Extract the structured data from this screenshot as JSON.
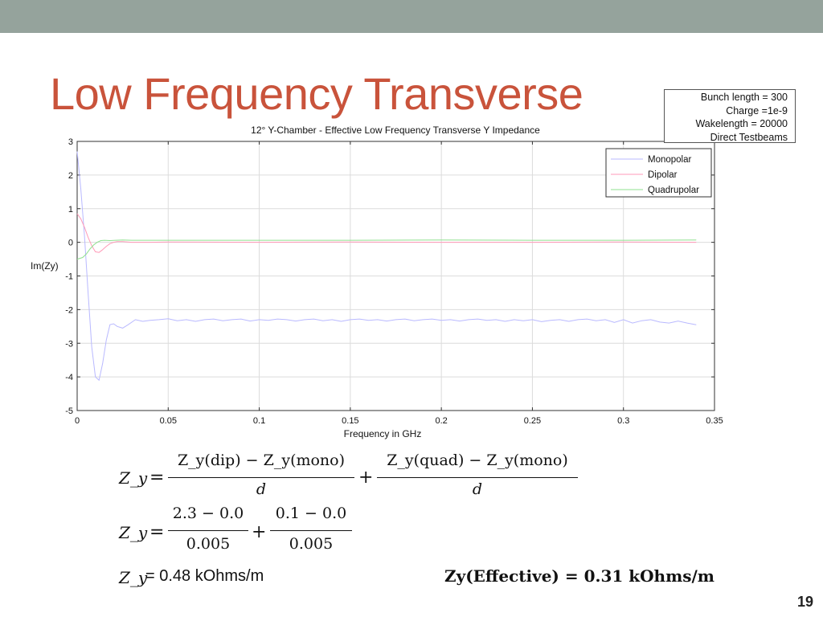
{
  "slide": {
    "title": "Low Frequency Transverse",
    "page_number": "19",
    "topbar_color": "#95a39c",
    "title_color": "#c9533b"
  },
  "info_box": {
    "lines": [
      "Bunch length = 300",
      "Charge =1e-9",
      "Wakelength = 20000",
      "Direct Testbeams"
    ]
  },
  "chart_data": {
    "type": "line",
    "title": "12° Y-Chamber - Effective Low Frequency Transverse Y Impedance",
    "xlabel": "Frequency in GHz",
    "ylabel": "Im(Zy)",
    "xlim": [
      0,
      0.35
    ],
    "ylim": [
      -5,
      3
    ],
    "xticks": [
      "0",
      "0.05",
      "0.1",
      "0.15",
      "0.2",
      "0.25",
      "0.3",
      "0.35"
    ],
    "yticks": [
      "3",
      "2",
      "1",
      "0",
      "-1",
      "-2",
      "-3",
      "-4",
      "-5"
    ],
    "grid": true,
    "legend_position": "top-right",
    "series": [
      {
        "name": "Monopolar",
        "color": "#b9b9ff",
        "x": [
          0,
          0.002,
          0.004,
          0.006,
          0.008,
          0.01,
          0.012,
          0.014,
          0.016,
          0.018,
          0.02,
          0.022,
          0.025,
          0.028,
          0.032,
          0.036,
          0.04,
          0.045,
          0.05,
          0.055,
          0.06,
          0.065,
          0.07,
          0.075,
          0.08,
          0.085,
          0.09,
          0.095,
          0.1,
          0.105,
          0.11,
          0.115,
          0.12,
          0.125,
          0.13,
          0.135,
          0.14,
          0.145,
          0.15,
          0.155,
          0.16,
          0.165,
          0.17,
          0.175,
          0.18,
          0.185,
          0.19,
          0.195,
          0.2,
          0.205,
          0.21,
          0.215,
          0.22,
          0.225,
          0.23,
          0.235,
          0.24,
          0.245,
          0.25,
          0.255,
          0.26,
          0.265,
          0.27,
          0.275,
          0.28,
          0.285,
          0.29,
          0.295,
          0.3,
          0.305,
          0.31,
          0.315,
          0.32,
          0.325,
          0.33,
          0.335,
          0.34
        ],
        "values": [
          2.7,
          1.6,
          0.2,
          -1.5,
          -3.1,
          -4.0,
          -4.1,
          -3.6,
          -2.9,
          -2.45,
          -2.42,
          -2.5,
          -2.55,
          -2.45,
          -2.3,
          -2.35,
          -2.32,
          -2.3,
          -2.27,
          -2.33,
          -2.3,
          -2.35,
          -2.3,
          -2.28,
          -2.33,
          -2.3,
          -2.28,
          -2.34,
          -2.3,
          -2.32,
          -2.28,
          -2.3,
          -2.34,
          -2.3,
          -2.28,
          -2.33,
          -2.3,
          -2.35,
          -2.3,
          -2.28,
          -2.32,
          -2.3,
          -2.34,
          -2.3,
          -2.28,
          -2.33,
          -2.3,
          -2.28,
          -2.32,
          -2.3,
          -2.34,
          -2.3,
          -2.28,
          -2.32,
          -2.3,
          -2.35,
          -2.3,
          -2.33,
          -2.3,
          -2.36,
          -2.32,
          -2.3,
          -2.35,
          -2.3,
          -2.28,
          -2.33,
          -2.3,
          -2.38,
          -2.3,
          -2.4,
          -2.33,
          -2.3,
          -2.37,
          -2.4,
          -2.34,
          -2.4,
          -2.45
        ]
      },
      {
        "name": "Dipolar",
        "color": "#ff9ab8",
        "x": [
          0,
          0.002,
          0.004,
          0.006,
          0.008,
          0.01,
          0.012,
          0.014,
          0.016,
          0.018,
          0.02,
          0.022,
          0.025,
          0.03,
          0.04,
          0.05,
          0.1,
          0.15,
          0.2,
          0.25,
          0.3,
          0.34
        ],
        "values": [
          0.85,
          0.7,
          0.45,
          0.15,
          -0.1,
          -0.28,
          -0.3,
          -0.22,
          -0.12,
          -0.04,
          0.0,
          0.02,
          0.02,
          0.0,
          0.0,
          0.01,
          0.0,
          0.01,
          0.0,
          0.0,
          0.01,
          0.0
        ]
      },
      {
        "name": "Quadrupolar",
        "color": "#8fe08f",
        "x": [
          0,
          0.003,
          0.005,
          0.007,
          0.009,
          0.011,
          0.013,
          0.015,
          0.018,
          0.021,
          0.025,
          0.03,
          0.04,
          0.05,
          0.1,
          0.15,
          0.2,
          0.25,
          0.3,
          0.34
        ],
        "values": [
          -0.5,
          -0.45,
          -0.35,
          -0.2,
          -0.08,
          0.0,
          0.05,
          0.06,
          0.05,
          0.06,
          0.07,
          0.06,
          0.06,
          0.06,
          0.06,
          0.06,
          0.07,
          0.06,
          0.06,
          0.07
        ]
      }
    ]
  },
  "equations": {
    "eq1": {
      "lhs": "Z_y",
      "num1": "Z_y(dip) − Z_y(mono)",
      "den1": "d",
      "num2": "Z_y(quad) − Z_y(mono)",
      "den2": "d"
    },
    "eq2": {
      "lhs": "Z_y",
      "num1": "2.3 − 0.0",
      "den1": "0.005",
      "num2": "0.1 − 0.0",
      "den2": "0.005"
    },
    "result": {
      "lhs": "Z_y",
      "value": "= 0.48 kOhms/m"
    },
    "effective": "Zy(Effective) = 0.31 kOhms/m"
  }
}
